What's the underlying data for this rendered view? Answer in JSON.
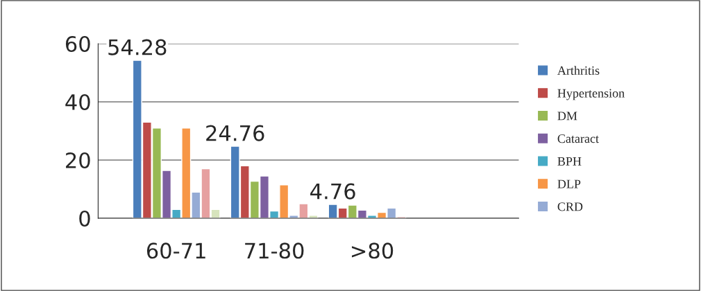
{
  "chart_data": {
    "type": "bar",
    "categories": [
      "60-71",
      "71-80",
      ">80",
      null
    ],
    "series": [
      {
        "name": "Arthritis",
        "color": "#4a7ebb",
        "values": [
          54.28,
          24.76,
          4.76,
          null
        ],
        "value_labels": [
          "54.28",
          "24.76",
          "4.76",
          null
        ]
      },
      {
        "name": "Hypertension",
        "color": "#be4b48",
        "values": [
          33,
          18,
          3.5,
          null
        ]
      },
      {
        "name": "DM",
        "color": "#98b954",
        "values": [
          31,
          12.7,
          4.5,
          null
        ]
      },
      {
        "name": "Cataract",
        "color": "#7d60a0",
        "values": [
          16.4,
          14.5,
          2.8,
          null
        ]
      },
      {
        "name": "BPH",
        "color": "#46aac5",
        "values": [
          3,
          2.5,
          1,
          null
        ]
      },
      {
        "name": "DLP",
        "color": "#f79646",
        "values": [
          31,
          11.5,
          2,
          null
        ]
      },
      {
        "name": "CRD",
        "color": "#95abd5",
        "values": [
          9,
          1,
          3.5,
          null
        ]
      },
      {
        "color": "#e6a0a0",
        "values": [
          17,
          5,
          0.5,
          null
        ]
      },
      {
        "color": "#d7e4bd",
        "values": [
          3,
          1,
          null,
          null
        ]
      }
    ],
    "ylim": [
      0,
      60
    ],
    "yticks": [
      0,
      20,
      40,
      60
    ],
    "grid": "y",
    "legend": "right"
  }
}
